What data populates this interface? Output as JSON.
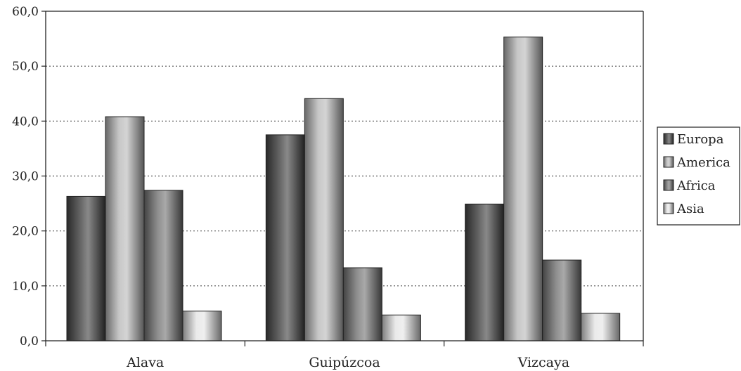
{
  "chart_data": {
    "type": "bar",
    "title": "",
    "xlabel": "",
    "ylabel": "",
    "categories": [
      "Alava",
      "Guipúzcoa",
      "Vizcaya"
    ],
    "series": [
      {
        "name": "Europa",
        "values": [
          26.3,
          37.5,
          24.9
        ],
        "color": "#4a4a4a"
      },
      {
        "name": "America",
        "values": [
          40.8,
          44.1,
          55.3
        ],
        "color": "#bdbdbd"
      },
      {
        "name": "Africa",
        "values": [
          27.4,
          13.3,
          14.7
        ],
        "color": "#7a7a7a"
      },
      {
        "name": "Asia",
        "values": [
          5.4,
          4.7,
          5.0
        ],
        "color": "#e6e6e6"
      }
    ],
    "ylim": [
      0,
      60
    ],
    "yticks": [
      "0,0",
      "10,0",
      "20,0",
      "30,0",
      "40,0",
      "50,0",
      "60,0"
    ],
    "grid": "horizontal-dotted",
    "legend_position": "right"
  }
}
